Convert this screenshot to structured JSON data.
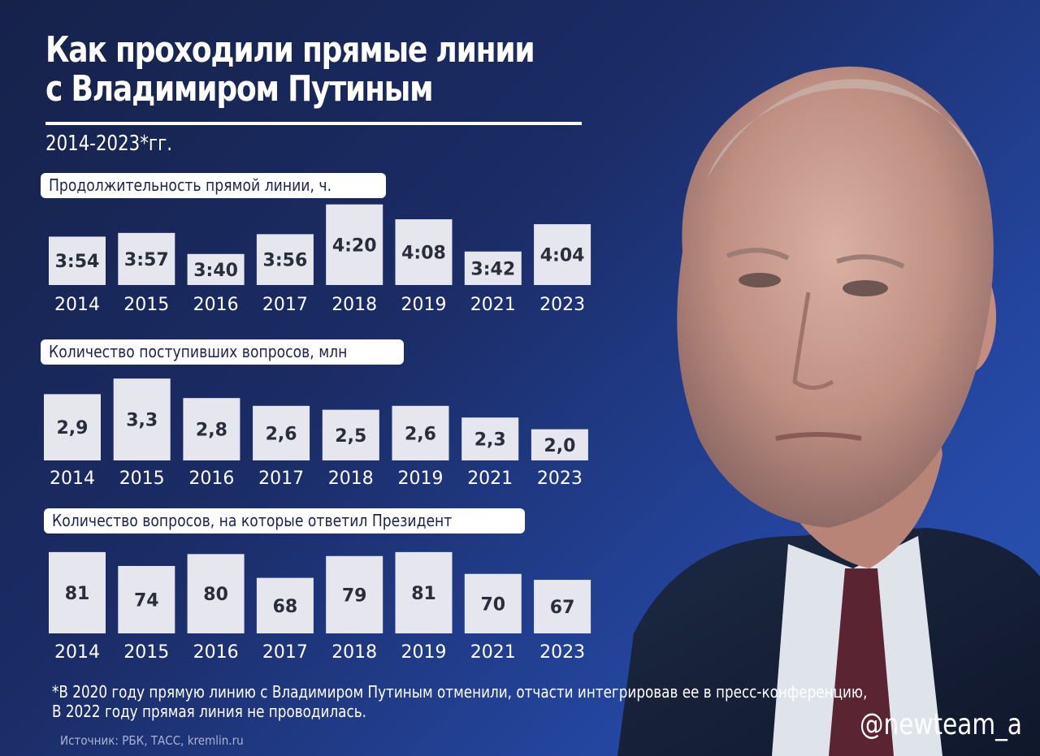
{
  "header": {
    "title_line1": "Как проходили прямые линии",
    "title_line2": "с Владимиром Путиным",
    "subtitle": "2014-2023*гг."
  },
  "chart_data": [
    {
      "type": "bar",
      "title": "Продолжительность прямой линии, ч.",
      "categories": [
        "2014",
        "2015",
        "2016",
        "2017",
        "2018",
        "2019",
        "2021",
        "2023"
      ],
      "labels": [
        "3:54",
        "3:57",
        "3:40",
        "3:56",
        "4:20",
        "4:08",
        "3:42",
        "4:04"
      ],
      "values": [
        3.9,
        3.95,
        3.667,
        3.933,
        4.333,
        4.133,
        3.7,
        4.067
      ],
      "ylim": [
        3.25,
        4.45
      ]
    },
    {
      "type": "bar",
      "title": "Количество поступивших вопросов, млн",
      "categories": [
        "2014",
        "2015",
        "2016",
        "2017",
        "2018",
        "2019",
        "2021",
        "2023"
      ],
      "labels": [
        "2,9",
        "3,3",
        "2,8",
        "2,6",
        "2,5",
        "2,6",
        "2,3",
        "2,0"
      ],
      "values": [
        2.9,
        3.3,
        2.8,
        2.6,
        2.5,
        2.6,
        2.3,
        2.0
      ],
      "ylim": [
        1.2,
        3.45
      ]
    },
    {
      "type": "bar",
      "title": "Количество вопросов, на которые ответил Президент",
      "categories": [
        "2014",
        "2015",
        "2016",
        "2017",
        "2018",
        "2019",
        "2021",
        "2023"
      ],
      "labels": [
        "81",
        "74",
        "80",
        "68",
        "79",
        "81",
        "70",
        "67"
      ],
      "values": [
        81,
        74,
        80,
        68,
        79,
        81,
        70,
        67
      ],
      "ylim": [
        40,
        83
      ]
    }
  ],
  "footer": {
    "note_line1": "*В 2020 году прямую линию с Владимиром Путиным отменили, отчасти интегрировав ее в пресс-конференцию,",
    "note_line2": " В 2022 году прямая линия не проводилась.",
    "source": "Источник: РБК, ТАСС, kremlin.ru",
    "handle": "@newteam_a"
  },
  "colors": {
    "bar_fill": "#e6e7ee",
    "bar_text": "#2a2d3a",
    "label_bg": "#ffffff",
    "label_text": "#1b2350"
  }
}
